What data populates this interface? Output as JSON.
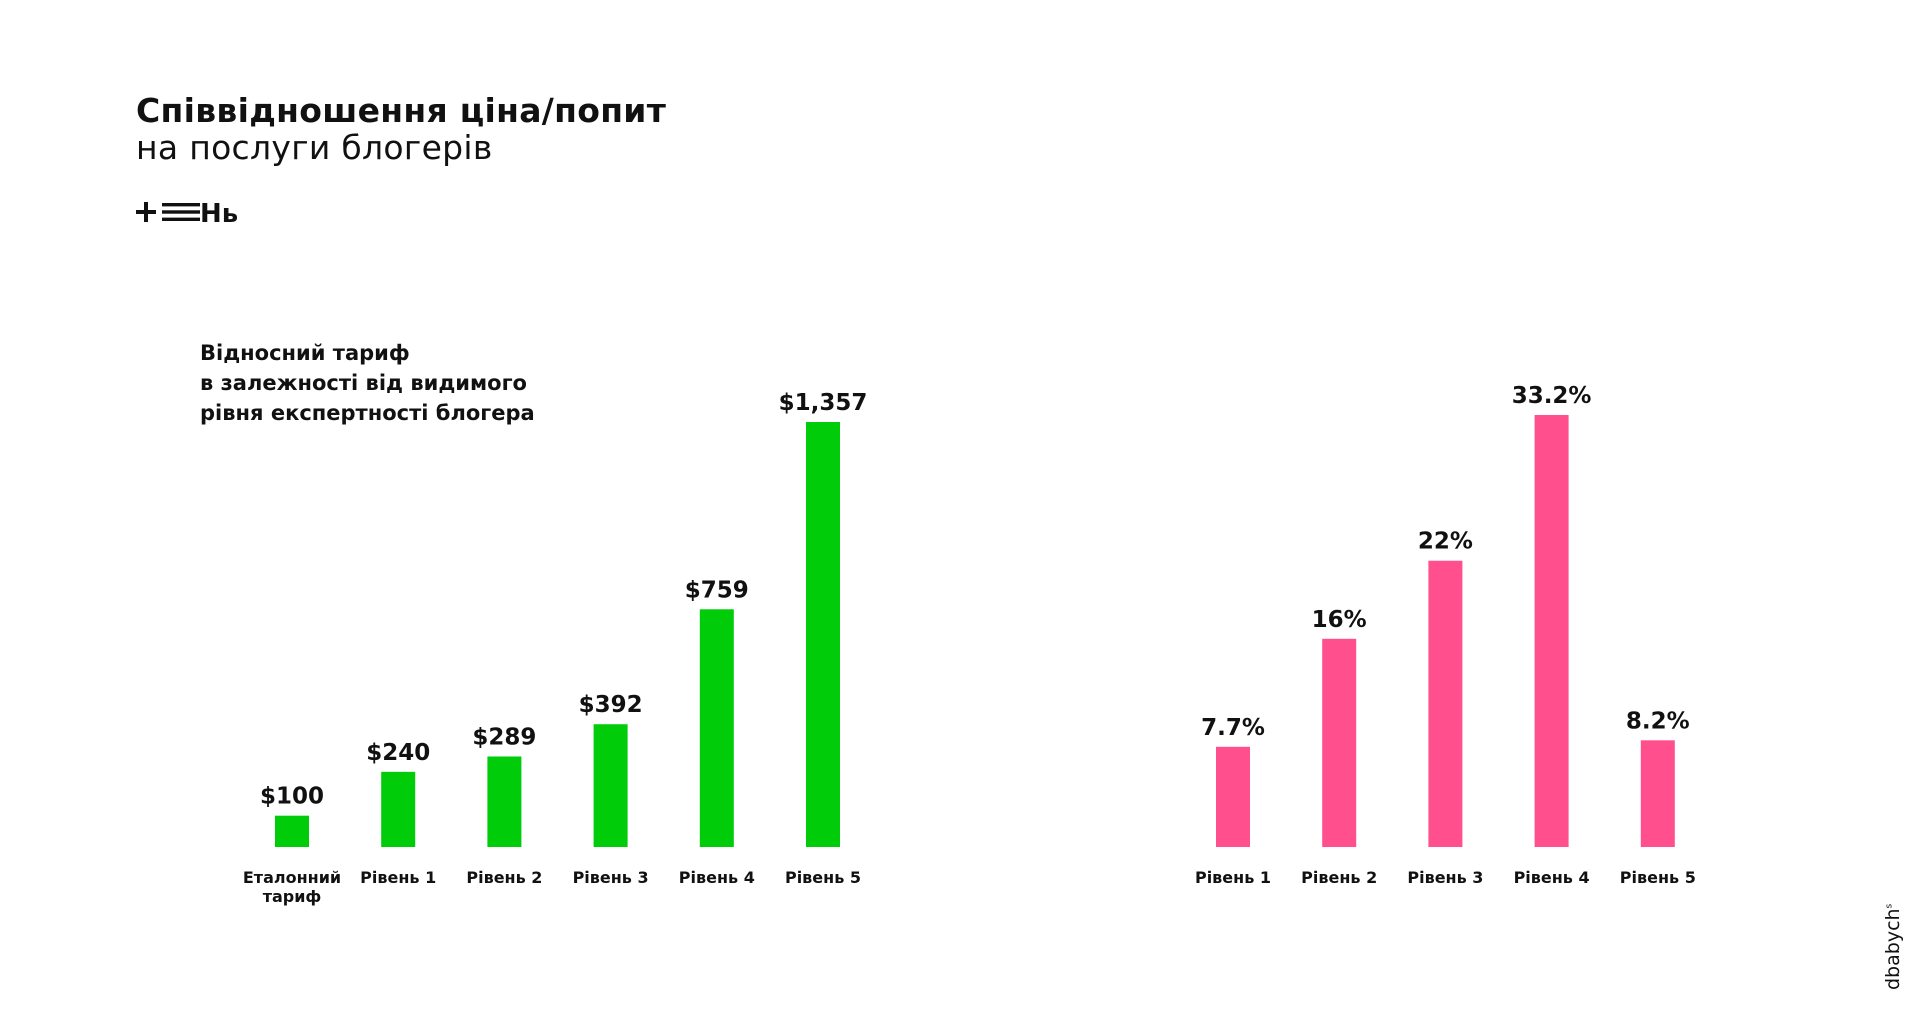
{
  "header": {
    "title_line1": "Співвідношення ціна/попит",
    "title_line2": "на послуги блогерів",
    "logo_text": "Нь"
  },
  "subtitle": {
    "line1": "Відносний тариф",
    "line2": "в залежності від видимого",
    "line3": "рівня експертності блогера"
  },
  "signature": {
    "text": "dbabych",
    "mark": "s"
  },
  "colors": {
    "price_bar": "#00CC0A",
    "demand_bar": "#FF4F8C",
    "text": "#111111"
  },
  "chart_data": [
    {
      "type": "bar",
      "categories": [
        [
          "Еталонний",
          "тариф"
        ],
        [
          "Рівень 1"
        ],
        [
          "Рівень 2"
        ],
        [
          "Рівень 3"
        ],
        [
          "Рівень 4"
        ],
        [
          "Рівень 5"
        ]
      ],
      "values": [
        100,
        240,
        289,
        392,
        759,
        1357
      ],
      "value_labels": [
        "$100",
        "$240",
        "$289",
        "$392",
        "$759",
        "$1,357"
      ],
      "color": "#00CC0A",
      "ylim": [
        0,
        1357
      ],
      "grid": false
    },
    {
      "type": "bar",
      "categories": [
        [
          "Рівень 1"
        ],
        [
          "Рівень 2"
        ],
        [
          "Рівень 3"
        ],
        [
          "Рівень 4"
        ],
        [
          "Рівень 5"
        ]
      ],
      "values": [
        7.7,
        16,
        22,
        33.2,
        8.2
      ],
      "value_labels": [
        "7.7%",
        "16%",
        "22%",
        "33.2%",
        "8.2%"
      ],
      "color": "#FF4F8C",
      "ylim": [
        0,
        33.2
      ],
      "grid": false
    }
  ]
}
